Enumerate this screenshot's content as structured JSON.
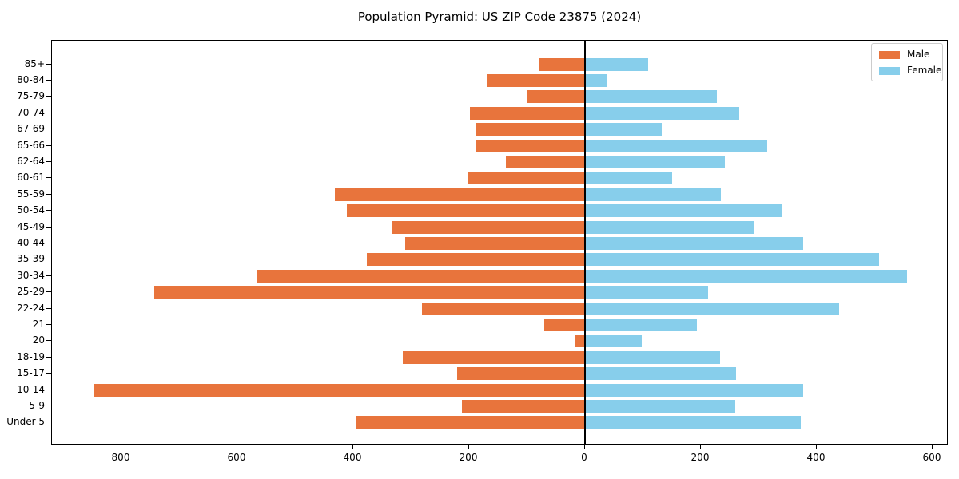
{
  "figure": {
    "title": "Population Pyramid: US ZIP Code 23875 (2024)"
  },
  "legend": {
    "items": [
      {
        "label": "Male",
        "color": "#e8743c"
      },
      {
        "label": "Female",
        "color": "#87ceeb"
      }
    ]
  },
  "chart_data": {
    "type": "bar",
    "orientation": "horizontal_pyramid",
    "title": "Population Pyramid: US ZIP Code 23875 (2024)",
    "categories": [
      "85+",
      "80-84",
      "75-79",
      "70-74",
      "67-69",
      "65-66",
      "62-64",
      "60-61",
      "55-59",
      "50-54",
      "45-49",
      "40-44",
      "35-39",
      "30-34",
      "25-29",
      "22-24",
      "21",
      "20",
      "18-19",
      "15-17",
      "10-14",
      "5-9",
      "Under 5"
    ],
    "series": [
      {
        "name": "Male",
        "side": "left",
        "color": "#e8743c",
        "values": [
          78,
          168,
          100,
          198,
          187,
          188,
          136,
          202,
          432,
          411,
          332,
          311,
          376,
          567,
          743,
          282,
          71,
          16,
          315,
          221,
          848,
          212,
          394
        ]
      },
      {
        "name": "Female",
        "side": "right",
        "color": "#87ceeb",
        "values": [
          109,
          39,
          228,
          266,
          132,
          315,
          241,
          150,
          235,
          339,
          292,
          376,
          507,
          556,
          213,
          438,
          193,
          98,
          233,
          260,
          376,
          259,
          372
        ]
      }
    ],
    "x_tick_values": [
      -800,
      -600,
      -400,
      -200,
      0,
      200,
      400,
      600
    ],
    "x_tick_labels": [
      "800",
      "600",
      "400",
      "200",
      "0",
      "200",
      "400",
      "600"
    ],
    "xlim": [
      -920,
      627
    ],
    "ylabel": "",
    "xlabel": "",
    "grid": false,
    "legend_position": "upper right",
    "zero_line": true
  }
}
